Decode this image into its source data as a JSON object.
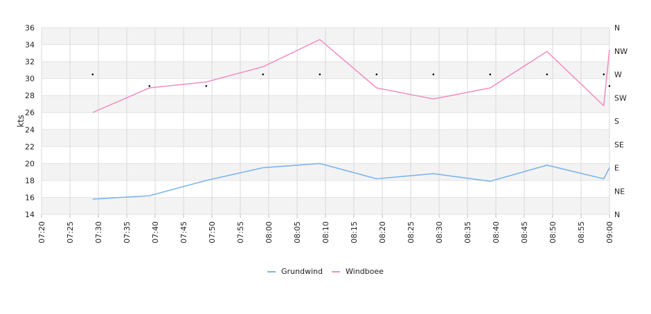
{
  "chart_data": {
    "type": "line",
    "x_ticks": [
      "07:20",
      "07:25",
      "07:30",
      "07:35",
      "07:40",
      "07:45",
      "07:50",
      "07:55",
      "08:00",
      "08:05",
      "08:10",
      "08:15",
      "08:20",
      "08:25",
      "08:30",
      "08:35",
      "08:40",
      "08:45",
      "08:50",
      "08:55",
      "09:00"
    ],
    "x_range": [
      "07:20",
      "09:00"
    ],
    "ylabel": "kts",
    "ylim": [
      14,
      36
    ],
    "y_ticks": [
      "14",
      "16",
      "18",
      "20",
      "22",
      "24",
      "26",
      "28",
      "30",
      "32",
      "34",
      "36"
    ],
    "y2_ticks": [
      "N",
      "NE",
      "E",
      "SE",
      "S",
      "SW",
      "W",
      "NW",
      "N"
    ],
    "y2_range": [
      0,
      360
    ],
    "grid": true,
    "legend_position": "bottom",
    "series": [
      {
        "name": "Grundwind",
        "color": "#7cb5ec",
        "points": [
          [
            "07:29",
            15.8
          ],
          [
            "07:39",
            16.2
          ],
          [
            "07:49",
            18.0
          ],
          [
            "07:59",
            19.5
          ],
          [
            "08:09",
            20.0
          ],
          [
            "08:19",
            18.2
          ],
          [
            "08:29",
            18.8
          ],
          [
            "08:39",
            17.9
          ],
          [
            "08:49",
            19.8
          ],
          [
            "08:59",
            18.2
          ],
          [
            "09:00",
            19.5
          ]
        ]
      },
      {
        "name": "Windboee",
        "color": "#f191c3",
        "points": [
          [
            "07:29",
            26.0
          ],
          [
            "07:39",
            28.9
          ],
          [
            "07:49",
            29.6
          ],
          [
            "07:59",
            31.4
          ],
          [
            "08:09",
            34.6
          ],
          [
            "08:19",
            28.9
          ],
          [
            "08:29",
            27.6
          ],
          [
            "08:39",
            28.9
          ],
          [
            "08:49",
            33.2
          ],
          [
            "08:59",
            26.8
          ],
          [
            "09:00",
            33.4
          ]
        ]
      },
      {
        "name": "",
        "color": "#000000",
        "marker_only": true,
        "axis": "y2",
        "points": [
          [
            "07:29",
            270
          ],
          [
            "07:39",
            247.5
          ],
          [
            "07:49",
            247.5
          ],
          [
            "07:59",
            270
          ],
          [
            "08:09",
            270
          ],
          [
            "08:19",
            270
          ],
          [
            "08:29",
            270
          ],
          [
            "08:39",
            270
          ],
          [
            "08:49",
            270
          ],
          [
            "08:59",
            270
          ],
          [
            "09:00",
            247.5
          ]
        ]
      }
    ]
  }
}
